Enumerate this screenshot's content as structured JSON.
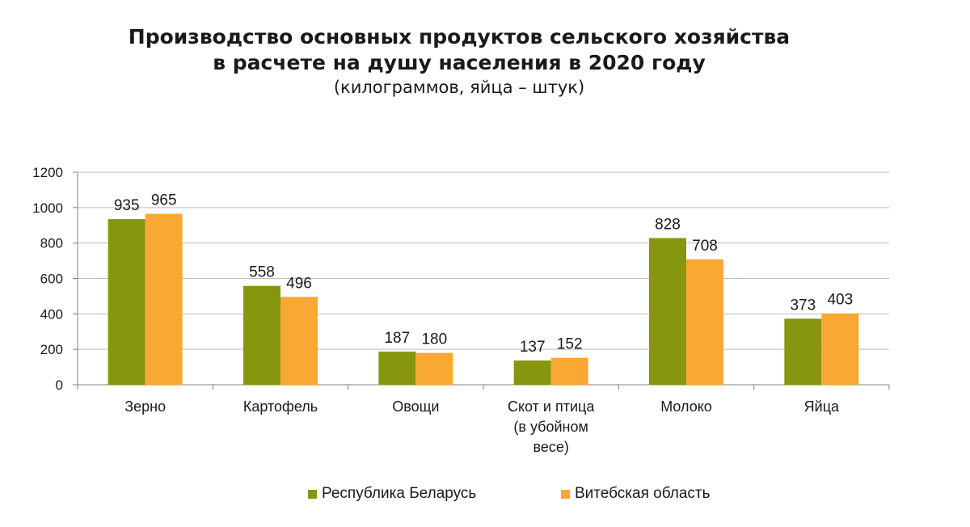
{
  "chart_data": {
    "type": "bar",
    "title_line1": "Производство основных продуктов сельского хозяйства",
    "title_line2": "в расчете на душу населения в 2020 году",
    "subtitle": "(килограммов, яйца – штук)",
    "categories": [
      [
        "Зерно"
      ],
      [
        "Картофель"
      ],
      [
        "Овощи"
      ],
      [
        "Скот и птица",
        "(в убойном",
        "весе)"
      ],
      [
        "Молоко"
      ],
      [
        "Яйца"
      ]
    ],
    "series": [
      {
        "name": "Республика Беларусь",
        "color": "#86960f",
        "values": [
          935,
          558,
          187,
          137,
          828,
          373
        ]
      },
      {
        "name": "Витебская область",
        "color": "#f9a834",
        "values": [
          965,
          496,
          180,
          152,
          708,
          403
        ]
      }
    ],
    "ylim": [
      0,
      1200
    ],
    "yticks": [
      "0",
      "200",
      "400",
      "600",
      "800",
      "1000",
      "1200"
    ],
    "grid": true,
    "legend_position": "bottom"
  }
}
